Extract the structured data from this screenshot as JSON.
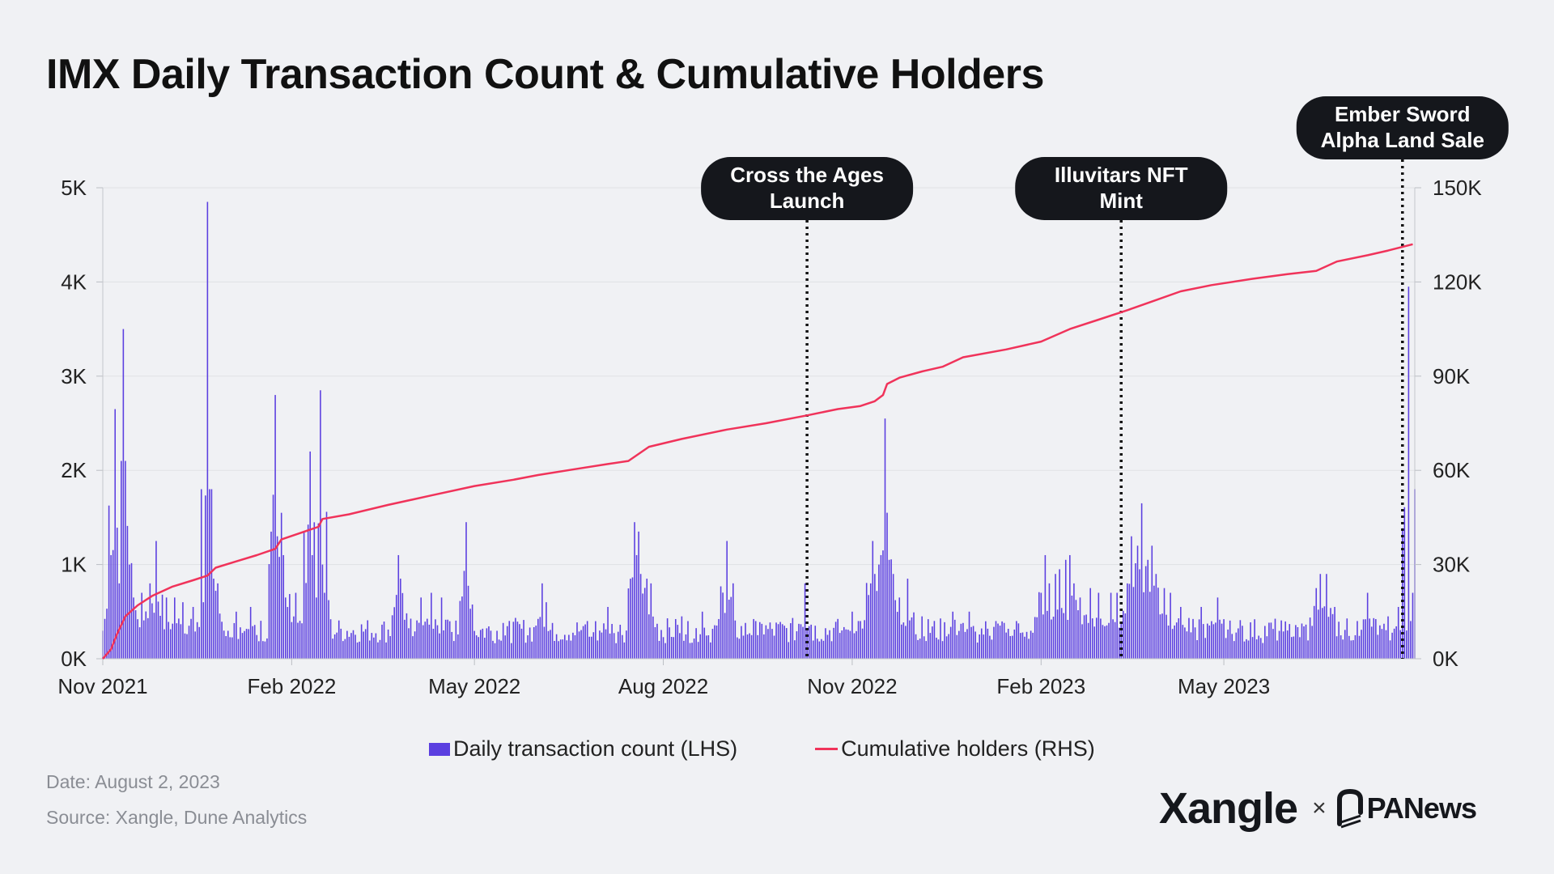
{
  "title": "IMX Daily Transaction Count & Cumulative Holders",
  "chart_data": {
    "type": "bar+line",
    "title": "IMX Daily Transaction Count & Cumulative Holders",
    "x_range": [
      "2021-11-01",
      "2023-08-02"
    ],
    "x_ticks": [
      {
        "date": "2021-11-01",
        "label": "Nov 2021"
      },
      {
        "date": "2022-02-01",
        "label": "Feb 2022"
      },
      {
        "date": "2022-05-01",
        "label": "May 2022"
      },
      {
        "date": "2022-08-01",
        "label": "Aug 2022"
      },
      {
        "date": "2022-11-01",
        "label": "Nov 2022"
      },
      {
        "date": "2023-02-01",
        "label": "Feb 2023"
      },
      {
        "date": "2023-05-01",
        "label": "May 2023"
      }
    ],
    "y_left": {
      "min": 0,
      "max": 5000,
      "ticks": [
        0,
        1000,
        2000,
        3000,
        4000,
        5000
      ],
      "labels": [
        "0K",
        "1K",
        "2K",
        "3K",
        "4K",
        "5K"
      ]
    },
    "y_right": {
      "min": 0,
      "max": 150000,
      "ticks": [
        0,
        30000,
        60000,
        90000,
        120000,
        150000
      ],
      "labels": [
        "0K",
        "30K",
        "60K",
        "90K",
        "120K",
        "150K"
      ]
    },
    "grid": true,
    "legend_position": "bottom-center",
    "series": [
      {
        "name": "Daily transaction count (LHS)",
        "type": "bar",
        "axis": "left",
        "color": "#5b3fe0",
        "baseline": 300,
        "peaks": [
          {
            "date": "2021-11-05",
            "value": 1100
          },
          {
            "date": "2021-11-07",
            "value": 2650
          },
          {
            "date": "2021-11-09",
            "value": 800
          },
          {
            "date": "2021-11-10",
            "value": 2100
          },
          {
            "date": "2021-11-11",
            "value": 3500
          },
          {
            "date": "2021-11-12",
            "value": 2100
          },
          {
            "date": "2021-11-14",
            "value": 1000
          },
          {
            "date": "2021-11-16",
            "value": 650
          },
          {
            "date": "2021-11-20",
            "value": 700
          },
          {
            "date": "2021-11-24",
            "value": 800
          },
          {
            "date": "2021-11-27",
            "value": 1250
          },
          {
            "date": "2021-12-02",
            "value": 650
          },
          {
            "date": "2021-12-06",
            "value": 650
          },
          {
            "date": "2021-12-10",
            "value": 600
          },
          {
            "date": "2021-12-15",
            "value": 550
          },
          {
            "date": "2021-12-20",
            "value": 600
          },
          {
            "date": "2021-12-22",
            "value": 4850
          },
          {
            "date": "2021-12-23",
            "value": 1800
          },
          {
            "date": "2021-12-25",
            "value": 850
          },
          {
            "date": "2021-12-27",
            "value": 800
          },
          {
            "date": "2022-01-05",
            "value": 500
          },
          {
            "date": "2022-01-12",
            "value": 550
          },
          {
            "date": "2022-01-24",
            "value": 2800
          },
          {
            "date": "2022-01-25",
            "value": 1300
          },
          {
            "date": "2022-01-28",
            "value": 1100
          },
          {
            "date": "2022-01-29",
            "value": 650
          },
          {
            "date": "2022-02-03",
            "value": 700
          },
          {
            "date": "2022-02-10",
            "value": 2200
          },
          {
            "date": "2022-02-11",
            "value": 1100
          },
          {
            "date": "2022-02-13",
            "value": 650
          },
          {
            "date": "2022-02-15",
            "value": 2850
          },
          {
            "date": "2022-02-16",
            "value": 1000
          },
          {
            "date": "2022-02-17",
            "value": 700
          },
          {
            "date": "2022-03-25",
            "value": 1100
          },
          {
            "date": "2022-03-26",
            "value": 850
          },
          {
            "date": "2022-04-05",
            "value": 650
          },
          {
            "date": "2022-04-10",
            "value": 700
          },
          {
            "date": "2022-04-15",
            "value": 650
          },
          {
            "date": "2022-04-27",
            "value": 1450
          },
          {
            "date": "2022-05-15",
            "value": 380
          },
          {
            "date": "2022-06-03",
            "value": 800
          },
          {
            "date": "2022-06-05",
            "value": 600
          },
          {
            "date": "2022-06-25",
            "value": 400
          },
          {
            "date": "2022-07-05",
            "value": 550
          },
          {
            "date": "2022-07-18",
            "value": 1450
          },
          {
            "date": "2022-07-19",
            "value": 1100
          },
          {
            "date": "2022-07-20",
            "value": 1350
          },
          {
            "date": "2022-07-21",
            "value": 900
          },
          {
            "date": "2022-07-24",
            "value": 850
          },
          {
            "date": "2022-07-26",
            "value": 800
          },
          {
            "date": "2022-08-10",
            "value": 450
          },
          {
            "date": "2022-08-20",
            "value": 500
          },
          {
            "date": "2022-09-01",
            "value": 1250
          },
          {
            "date": "2022-09-15",
            "value": 400
          },
          {
            "date": "2022-10-09",
            "value": 800
          },
          {
            "date": "2022-11-01",
            "value": 500
          },
          {
            "date": "2022-11-05",
            "value": 400
          },
          {
            "date": "2022-11-10",
            "value": 800
          },
          {
            "date": "2022-11-11",
            "value": 1250
          },
          {
            "date": "2022-11-12",
            "value": 900
          },
          {
            "date": "2022-11-14",
            "value": 1000
          },
          {
            "date": "2022-11-15",
            "value": 1100
          },
          {
            "date": "2022-11-16",
            "value": 1150
          },
          {
            "date": "2022-11-17",
            "value": 2550
          },
          {
            "date": "2022-11-18",
            "value": 1550
          },
          {
            "date": "2022-11-19",
            "value": 1050
          },
          {
            "date": "2022-11-21",
            "value": 900
          },
          {
            "date": "2022-11-24",
            "value": 650
          },
          {
            "date": "2022-11-28",
            "value": 850
          },
          {
            "date": "2022-12-05",
            "value": 450
          },
          {
            "date": "2022-12-20",
            "value": 500
          },
          {
            "date": "2022-12-28",
            "value": 500
          },
          {
            "date": "2023-01-10",
            "value": 400
          },
          {
            "date": "2023-01-20",
            "value": 400
          },
          {
            "date": "2023-02-01",
            "value": 700
          },
          {
            "date": "2023-02-03",
            "value": 1100
          },
          {
            "date": "2023-02-05",
            "value": 800
          },
          {
            "date": "2023-02-08",
            "value": 900
          },
          {
            "date": "2023-02-10",
            "value": 950
          },
          {
            "date": "2023-02-13",
            "value": 1050
          },
          {
            "date": "2023-02-15",
            "value": 1100
          },
          {
            "date": "2023-02-17",
            "value": 800
          },
          {
            "date": "2023-02-20",
            "value": 650
          },
          {
            "date": "2023-02-25",
            "value": 750
          },
          {
            "date": "2023-03-01",
            "value": 700
          },
          {
            "date": "2023-03-07",
            "value": 700
          },
          {
            "date": "2023-03-10",
            "value": 700
          },
          {
            "date": "2023-03-15",
            "value": 800
          },
          {
            "date": "2023-03-17",
            "value": 1300
          },
          {
            "date": "2023-03-20",
            "value": 1200
          },
          {
            "date": "2023-03-22",
            "value": 1650
          },
          {
            "date": "2023-03-25",
            "value": 1050
          },
          {
            "date": "2023-03-27",
            "value": 1200
          },
          {
            "date": "2023-03-29",
            "value": 900
          },
          {
            "date": "2023-04-02",
            "value": 750
          },
          {
            "date": "2023-04-05",
            "value": 700
          },
          {
            "date": "2023-04-10",
            "value": 550
          },
          {
            "date": "2023-04-20",
            "value": 550
          },
          {
            "date": "2023-04-28",
            "value": 650
          },
          {
            "date": "2023-05-01",
            "value": 420
          },
          {
            "date": "2023-05-10",
            "value": 350
          },
          {
            "date": "2023-06-01",
            "value": 300
          },
          {
            "date": "2023-06-15",
            "value": 750
          },
          {
            "date": "2023-06-17",
            "value": 900
          },
          {
            "date": "2023-06-20",
            "value": 900
          },
          {
            "date": "2023-06-24",
            "value": 550
          },
          {
            "date": "2023-07-05",
            "value": 400
          },
          {
            "date": "2023-07-10",
            "value": 700
          },
          {
            "date": "2023-07-20",
            "value": 450
          },
          {
            "date": "2023-07-25",
            "value": 550
          },
          {
            "date": "2023-07-29",
            "value": 300
          },
          {
            "date": "2023-07-30",
            "value": 3950
          },
          {
            "date": "2023-07-31",
            "value": 400
          },
          {
            "date": "2023-08-01",
            "value": 700
          }
        ]
      },
      {
        "name": "Cumulative holders (RHS)",
        "type": "line",
        "axis": "right",
        "color": "#f0335a",
        "points": [
          {
            "date": "2021-11-01",
            "value": 0
          },
          {
            "date": "2021-11-05",
            "value": 3000
          },
          {
            "date": "2021-11-08",
            "value": 8000
          },
          {
            "date": "2021-11-12",
            "value": 13500
          },
          {
            "date": "2021-11-18",
            "value": 17000
          },
          {
            "date": "2021-11-25",
            "value": 20000
          },
          {
            "date": "2021-12-05",
            "value": 23000
          },
          {
            "date": "2021-12-15",
            "value": 25000
          },
          {
            "date": "2021-12-22",
            "value": 26500
          },
          {
            "date": "2021-12-26",
            "value": 29000
          },
          {
            "date": "2022-01-05",
            "value": 31000
          },
          {
            "date": "2022-01-15",
            "value": 33000
          },
          {
            "date": "2022-01-24",
            "value": 35000
          },
          {
            "date": "2022-01-27",
            "value": 38000
          },
          {
            "date": "2022-02-05",
            "value": 40000
          },
          {
            "date": "2022-02-14",
            "value": 42000
          },
          {
            "date": "2022-02-16",
            "value": 44500
          },
          {
            "date": "2022-03-01",
            "value": 46000
          },
          {
            "date": "2022-03-20",
            "value": 49000
          },
          {
            "date": "2022-04-10",
            "value": 52000
          },
          {
            "date": "2022-05-01",
            "value": 55000
          },
          {
            "date": "2022-05-20",
            "value": 57000
          },
          {
            "date": "2022-06-01",
            "value": 58500
          },
          {
            "date": "2022-06-20",
            "value": 60500
          },
          {
            "date": "2022-07-05",
            "value": 62000
          },
          {
            "date": "2022-07-15",
            "value": 63000
          },
          {
            "date": "2022-07-25",
            "value": 67500
          },
          {
            "date": "2022-08-10",
            "value": 70000
          },
          {
            "date": "2022-09-01",
            "value": 73000
          },
          {
            "date": "2022-09-20",
            "value": 75000
          },
          {
            "date": "2022-10-10",
            "value": 77500
          },
          {
            "date": "2022-10-25",
            "value": 79500
          },
          {
            "date": "2022-11-05",
            "value": 80500
          },
          {
            "date": "2022-11-12",
            "value": 82000
          },
          {
            "date": "2022-11-16",
            "value": 84000
          },
          {
            "date": "2022-11-18",
            "value": 87500
          },
          {
            "date": "2022-11-24",
            "value": 89500
          },
          {
            "date": "2022-12-05",
            "value": 91500
          },
          {
            "date": "2022-12-15",
            "value": 93000
          },
          {
            "date": "2022-12-25",
            "value": 96000
          },
          {
            "date": "2023-01-15",
            "value": 98500
          },
          {
            "date": "2023-02-01",
            "value": 101000
          },
          {
            "date": "2023-02-15",
            "value": 105000
          },
          {
            "date": "2023-03-01",
            "value": 108000
          },
          {
            "date": "2023-03-15",
            "value": 111000
          },
          {
            "date": "2023-03-28",
            "value": 114000
          },
          {
            "date": "2023-04-10",
            "value": 117000
          },
          {
            "date": "2023-04-25",
            "value": 119000
          },
          {
            "date": "2023-05-15",
            "value": 121000
          },
          {
            "date": "2023-06-01",
            "value": 122500
          },
          {
            "date": "2023-06-15",
            "value": 123500
          },
          {
            "date": "2023-06-25",
            "value": 126500
          },
          {
            "date": "2023-07-10",
            "value": 128500
          },
          {
            "date": "2023-07-20",
            "value": 130000
          },
          {
            "date": "2023-08-01",
            "value": 132000
          }
        ]
      }
    ],
    "annotations": [
      {
        "date": "2022-10-10",
        "lines": [
          "Cross the Ages",
          "Launch"
        ]
      },
      {
        "date": "2023-03-12",
        "lines": [
          "Illuvitars NFT",
          "Mint"
        ]
      },
      {
        "date": "2023-07-27",
        "lines": [
          "Ember Sword",
          "Alpha Land Sale"
        ]
      }
    ]
  },
  "legend": {
    "bar_label": "Daily transaction count (LHS)",
    "line_label": "Cumulative holders (RHS)"
  },
  "footer": {
    "date": "Date: August 2, 2023",
    "source": "Source: Xangle, Dune Analytics"
  },
  "brand": {
    "xangle": "Xangle",
    "separator": "×",
    "panews": "PANews"
  }
}
